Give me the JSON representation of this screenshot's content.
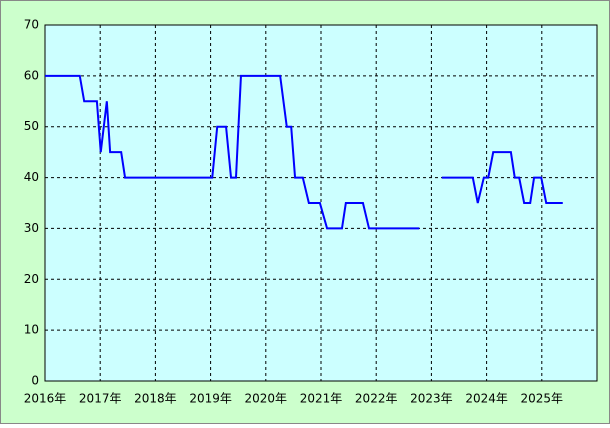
{
  "chart_data": {
    "type": "line",
    "x": [
      2016.0,
      2016.63,
      2016.71,
      2016.94,
      2017.01,
      2017.12,
      2017.18,
      2017.38,
      2017.45,
      2019.03,
      2019.12,
      2019.28,
      2019.37,
      2019.46,
      2019.55,
      2020.26,
      2020.38,
      2020.46,
      2020.53,
      2020.67,
      2020.78,
      2020.98,
      2021.11,
      2021.38,
      2021.45,
      2021.76,
      2021.87,
      2022.78,
      2023.0,
      2023.19,
      2023.75,
      2023.84,
      2023.95,
      2024.03,
      2024.12,
      2024.44,
      2024.51,
      2024.59,
      2024.68,
      2024.79,
      2024.86,
      2024.99,
      2025.08,
      2025.38
    ],
    "series": [
      {
        "color": "#0000ff",
        "values": [
          60,
          60,
          55,
          55,
          45,
          55,
          45,
          45,
          40,
          40,
          50,
          50,
          40,
          40,
          60,
          60,
          50,
          50,
          40,
          40,
          35,
          35,
          30,
          30,
          35,
          35,
          30,
          30,
          null,
          40,
          40,
          35,
          40,
          40,
          45,
          45,
          40,
          40,
          35,
          35,
          40,
          40,
          35,
          35
        ]
      }
    ],
    "xlim": [
      2016,
      2026
    ],
    "xticks": [
      {
        "value": 2016,
        "label": "2016年"
      },
      {
        "value": 2017,
        "label": "2017年"
      },
      {
        "value": 2018,
        "label": "2018年"
      },
      {
        "value": 2019,
        "label": "2019年"
      },
      {
        "value": 2020,
        "label": "2020年"
      },
      {
        "value": 2021,
        "label": "2021年"
      },
      {
        "value": 2022,
        "label": "2022年"
      },
      {
        "value": 2023,
        "label": "2023年"
      },
      {
        "value": 2024,
        "label": "2024年"
      },
      {
        "value": 2025,
        "label": "2025年"
      }
    ],
    "ylim": [
      0,
      70
    ],
    "yticks": [
      0,
      10,
      20,
      30,
      40,
      50,
      60,
      70
    ],
    "grid": true
  }
}
